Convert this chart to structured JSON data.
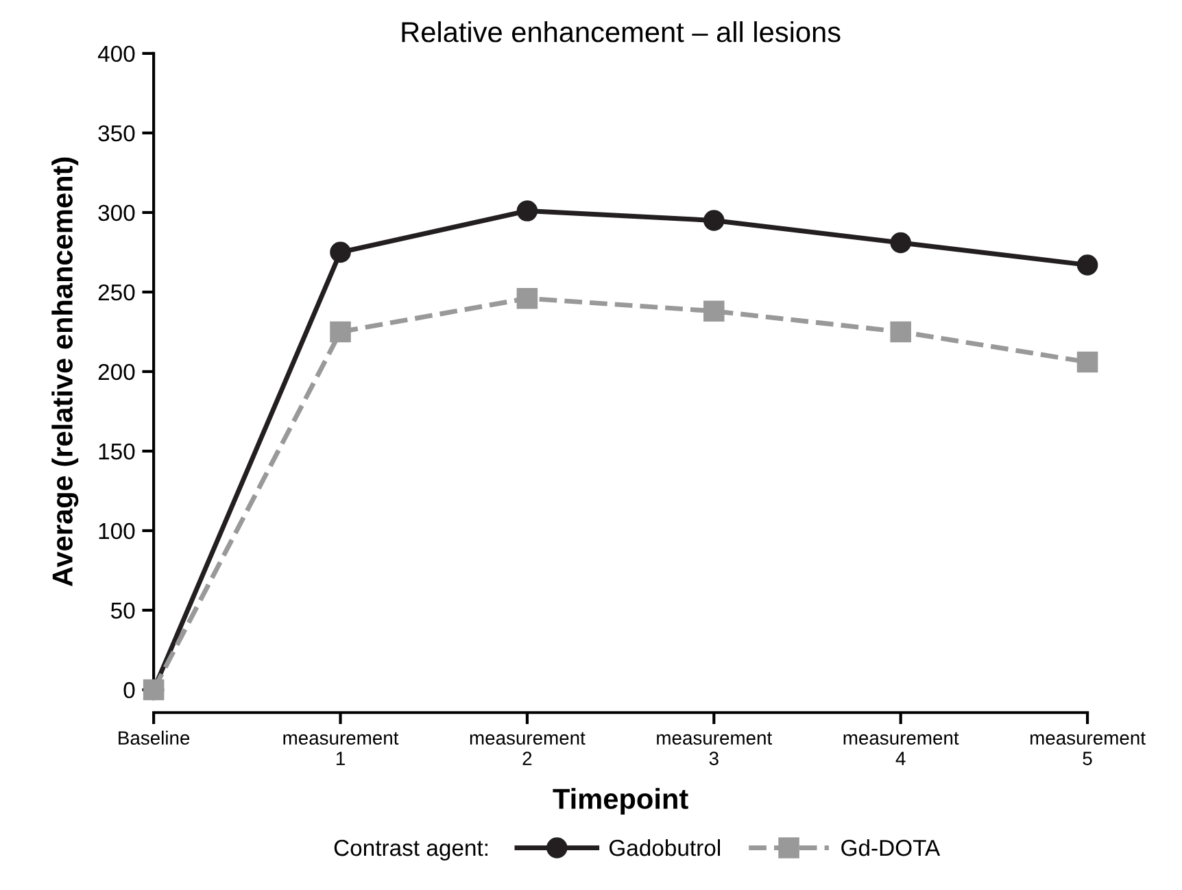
{
  "chart_data": {
    "type": "line",
    "title": "Relative enhancement – all lesions",
    "xlabel": "Timepoint",
    "ylabel": "Average (relative enhancement)",
    "legend_title": "Contrast agent:",
    "categories": [
      "Baseline",
      "measurement\n1",
      "measurement\n2",
      "measurement\n3",
      "measurement\n4",
      "measurement\n5"
    ],
    "series": [
      {
        "name": "Gadobutrol",
        "color": "#231f20",
        "values": [
          0,
          275,
          301,
          295,
          281,
          267
        ],
        "marker": "circle",
        "line_style": "solid"
      },
      {
        "name": "Gd-DOTA",
        "color": "#999999",
        "values": [
          0,
          225,
          246,
          238,
          225,
          206
        ],
        "marker": "square",
        "line_style": "dashed"
      }
    ],
    "ylim": [
      0,
      400
    ],
    "yticks": [
      0,
      50,
      100,
      150,
      200,
      250,
      300,
      350,
      400
    ],
    "grid": false,
    "legend": "bottom"
  }
}
